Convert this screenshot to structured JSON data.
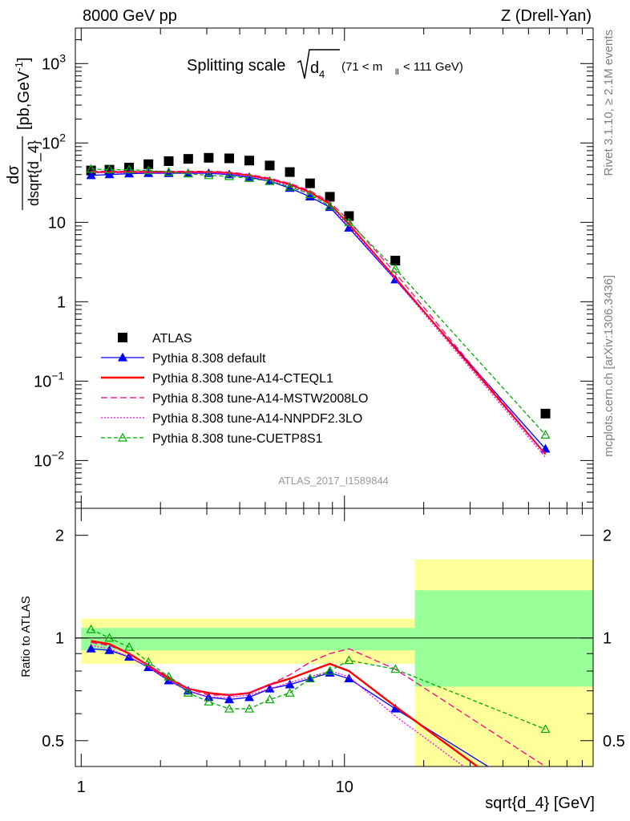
{
  "header": {
    "left": "8000 GeV pp",
    "right": "Z (Drell-Yan)"
  },
  "title": {
    "main": "Splitting scale",
    "sub": "d",
    "sub_index": "4",
    "range_lo": "(71 < m",
    "range_idx": "ll",
    "range_hi": "< 111 GeV)"
  },
  "side_labels": {
    "rivet": "Rivet 3.1.10, ≥ 2.1M events",
    "mcplots": "mcplots.cern.ch [arXiv:1306.3436]"
  },
  "watermark": "ATLAS_2017_I1589844",
  "axes": {
    "xlabel": "sqrt{d_4} [GeV]",
    "ylabel_top_num": "dσ",
    "ylabel_top_den": "dsqrt{d_4}",
    "ylabel_top_unit": "[pb,GeV",
    "ylabel_top_unit_exp": "-1",
    "ylabel_top_unit_close": "]",
    "ylabel_ratio": "Ratio to ATLAS",
    "x_ticks": [
      "1",
      "10"
    ],
    "y_ticks_top": [
      {
        "base": "10",
        "exp": "−2",
        "value": 0.01
      },
      {
        "base": "10",
        "exp": "−1",
        "value": 0.1
      },
      {
        "base": "1",
        "exp": "",
        "value": 1
      },
      {
        "base": "10",
        "exp": "",
        "value": 10
      },
      {
        "base": "10",
        "exp": "2",
        "value": 100
      },
      {
        "base": "10",
        "exp": "3",
        "value": 1000
      }
    ],
    "y_ticks_ratio": [
      "0.5",
      "1",
      "2"
    ]
  },
  "legend": [
    {
      "label": "ATLAS",
      "color": "#000000",
      "marker": "square",
      "dash": ""
    },
    {
      "label": "Pythia 8.308 default",
      "color": "#0000ff",
      "marker": "triangle",
      "dash": ""
    },
    {
      "label": "Pythia 8.308 tune-A14-CTEQL1",
      "color": "#ff0000",
      "marker": "none",
      "dash": ""
    },
    {
      "label": "Pythia 8.308 tune-A14-MSTW2008LO",
      "color": "#ff0080",
      "marker": "none",
      "dash": "8,4"
    },
    {
      "label": "Pythia 8.308 tune-A14-NNPDF2.3LO",
      "color": "#ff00ff",
      "marker": "none",
      "dash": "2,2"
    },
    {
      "label": "Pythia 8.308 tune-CUETP8S1",
      "color": "#00aa00",
      "marker": "open-triangle",
      "dash": "5,3"
    }
  ],
  "chart_data": {
    "type": "line",
    "x_scale": "log",
    "xlim": [
      0.95,
      88
    ],
    "main": {
      "y_scale": "log",
      "ylim": [
        0.0025,
        2800
      ],
      "x": [
        1.09,
        1.28,
        1.52,
        1.8,
        2.15,
        2.55,
        3.05,
        3.65,
        4.35,
        5.2,
        6.2,
        7.4,
        8.8,
        10.4,
        15.6,
        58
      ],
      "series": [
        {
          "name": "ATLAS",
          "values": [
            45,
            46,
            49,
            54,
            59,
            63,
            65,
            64,
            60,
            52,
            43,
            31,
            21,
            12,
            3.3,
            0.039
          ]
        },
        {
          "name": "Pythia 8.308 default",
          "values": [
            39,
            40,
            41,
            41.5,
            41.5,
            41.5,
            41.5,
            40,
            37,
            33,
            27,
            21,
            15.5,
            8.5,
            1.9,
            0.014
          ]
        },
        {
          "name": "Pythia 8.308 tune-A14-CTEQL1",
          "values": [
            43,
            43,
            43,
            43,
            43,
            43,
            43,
            42,
            39,
            35,
            30,
            24,
            17,
            9.5,
            2.0,
            0.012
          ]
        },
        {
          "name": "Pythia 8.308 tune-A14-MSTW2008LO",
          "values": [
            44,
            44,
            44,
            44,
            44,
            44,
            44,
            43,
            40,
            36,
            31,
            25,
            18,
            10.5,
            2.3,
            0.012
          ]
        },
        {
          "name": "Pythia 8.308 tune-A14-NNPDF2.3LO",
          "values": [
            42,
            42,
            42,
            42,
            42,
            42,
            42,
            41,
            38,
            34,
            29,
            23,
            16,
            9,
            1.9,
            0.011
          ]
        },
        {
          "name": "Pythia 8.308 tune-CUETP8S1",
          "values": [
            47,
            46,
            46,
            45,
            43,
            41,
            39,
            38,
            36,
            33,
            28,
            22.5,
            16,
            10,
            2.6,
            0.021
          ]
        }
      ]
    },
    "ratio": {
      "y_scale": "log",
      "ylim": [
        0.42,
        2.4
      ],
      "bands": [
        {
          "x_lo": 1.0,
          "x_hi": 18.5,
          "inner": [
            0.92,
            1.07
          ],
          "outer": [
            0.84,
            1.14
          ]
        },
        {
          "x_lo": 18.5,
          "x_hi": 88,
          "inner": [
            0.72,
            1.38
          ],
          "outer": [
            0.4,
            1.7
          ]
        }
      ],
      "x": [
        1.09,
        1.28,
        1.52,
        1.8,
        2.15,
        2.55,
        3.05,
        3.65,
        4.35,
        5.2,
        6.2,
        7.4,
        8.8,
        10.4,
        15.6,
        58
      ],
      "series": [
        {
          "name": "Pythia 8.308 default",
          "values": [
            0.93,
            0.92,
            0.88,
            0.82,
            0.75,
            0.7,
            0.67,
            0.66,
            0.67,
            0.71,
            0.73,
            0.76,
            0.79,
            0.76,
            0.62,
            0.33
          ]
        },
        {
          "name": "Pythia 8.308 tune-A14-CTEQL1",
          "values": [
            0.98,
            0.96,
            0.9,
            0.83,
            0.76,
            0.71,
            0.69,
            0.68,
            0.69,
            0.73,
            0.76,
            0.8,
            0.84,
            0.8,
            0.63,
            0.3
          ]
        },
        {
          "name": "Pythia 8.308 tune-A14-MSTW2008LO",
          "values": [
            0.97,
            0.95,
            0.9,
            0.83,
            0.77,
            0.71,
            0.68,
            0.68,
            0.69,
            0.73,
            0.78,
            0.85,
            0.9,
            0.93,
            0.81,
            0.42
          ]
        },
        {
          "name": "Pythia 8.308 tune-A14-NNPDF2.3LO",
          "values": [
            0.95,
            0.93,
            0.88,
            0.82,
            0.75,
            0.7,
            0.67,
            0.67,
            0.68,
            0.71,
            0.74,
            0.77,
            0.8,
            0.77,
            0.59,
            0.28
          ]
        },
        {
          "name": "Pythia 8.308 tune-CUETP8S1",
          "values": [
            1.06,
            1.0,
            0.94,
            0.85,
            0.77,
            0.69,
            0.65,
            0.62,
            0.62,
            0.66,
            0.69,
            0.76,
            0.8,
            0.86,
            0.81,
            0.54
          ]
        }
      ]
    }
  }
}
